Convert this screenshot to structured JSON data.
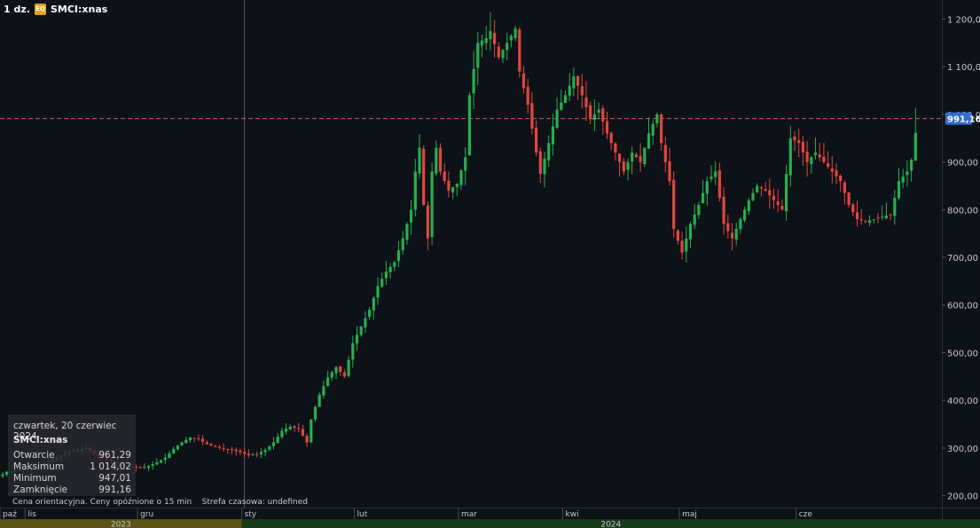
{
  "header": {
    "interval": "1 dz.",
    "badge": "EQ",
    "symbol": "SMCI:xnas"
  },
  "info_panel": {
    "date": "czwartek, 20 czerwiec 2024",
    "symbol": "SMCI:xnas",
    "rows": [
      {
        "label": "Otwarcie",
        "value": "961,29"
      },
      {
        "label": "Maksimum",
        "value": "1 014,02"
      },
      {
        "label": "Minimum",
        "value": "947,01"
      },
      {
        "label": "Zamknięcie",
        "value": "991,16"
      }
    ]
  },
  "footer_note": "Cena orientacyjna. Ceny opóźnione o 15 min    Strefa czasowa: undefined",
  "colors": {
    "up": "#22b14c",
    "down": "#e5453b",
    "background": "#0d1118",
    "price_line": "#e05050",
    "price_label_bg": "#2f6fd6",
    "year_2023": "#5a5216",
    "year_2024": "#173a1b"
  },
  "chart_data": {
    "type": "candlestick",
    "ylim": [
      175,
      1240
    ],
    "y_ticks": [
      200,
      300,
      400,
      500,
      600,
      700,
      800,
      900,
      1000,
      1100,
      1200
    ],
    "y_tick_labels": [
      "200,00",
      "300,00",
      "400,00",
      "500,00",
      "600,00",
      "700,00",
      "800,00",
      "900,00",
      "1 000,00",
      "1 100,00",
      "1 200,00"
    ],
    "current_price": 991.16,
    "current_price_label": "991,16",
    "months": [
      {
        "label": "paź",
        "index": 0
      },
      {
        "label": "lis",
        "index": 6
      },
      {
        "label": "gru",
        "index": 33
      },
      {
        "label": "sty",
        "index": 58
      },
      {
        "label": "lut",
        "index": 85
      },
      {
        "label": "mar",
        "index": 110
      },
      {
        "label": "kwi",
        "index": 135
      },
      {
        "label": "maj",
        "index": 163
      },
      {
        "label": "cze",
        "index": 191
      }
    ],
    "years": [
      {
        "label": "2023",
        "start": 0,
        "end": 58
      },
      {
        "label": "2024",
        "start": 58,
        "end": 210
      }
    ],
    "crosshair_index": 58,
    "anchors": [
      [
        0,
        245
      ],
      [
        1,
        250
      ],
      [
        3,
        252
      ],
      [
        5,
        255
      ],
      [
        8,
        262
      ],
      [
        10,
        268
      ],
      [
        12,
        275
      ],
      [
        14,
        285
      ],
      [
        16,
        290
      ],
      [
        18,
        295
      ],
      [
        20,
        300
      ],
      [
        22,
        288
      ],
      [
        25,
        276
      ],
      [
        27,
        268
      ],
      [
        29,
        262
      ],
      [
        31,
        260
      ],
      [
        33,
        258
      ],
      [
        35,
        262
      ],
      [
        37,
        270
      ],
      [
        39,
        280
      ],
      [
        41,
        298
      ],
      [
        43,
        312
      ],
      [
        45,
        322
      ],
      [
        47,
        318
      ],
      [
        49,
        308
      ],
      [
        51,
        302
      ],
      [
        53,
        298
      ],
      [
        55,
        296
      ],
      [
        57,
        291
      ],
      [
        59,
        285
      ],
      [
        61,
        287
      ],
      [
        63,
        296
      ],
      [
        65,
        312
      ],
      [
        67,
        336
      ],
      [
        69,
        345
      ],
      [
        71,
        340
      ],
      [
        73,
        312
      ],
      [
        74,
        360
      ],
      [
        76,
        412
      ],
      [
        78,
        448
      ],
      [
        80,
        470
      ],
      [
        82,
        450
      ],
      [
        84,
        520
      ],
      [
        86,
        555
      ],
      [
        88,
        590
      ],
      [
        90,
        640
      ],
      [
        92,
        670
      ],
      [
        94,
        690
      ],
      [
        96,
        740
      ],
      [
        98,
        800
      ],
      [
        99,
        880
      ],
      [
        100,
        930
      ],
      [
        101,
        810
      ],
      [
        102,
        740
      ],
      [
        103,
        880
      ],
      [
        104,
        930
      ],
      [
        105,
        880
      ],
      [
        107,
        840
      ],
      [
        109,
        855
      ],
      [
        111,
        910
      ],
      [
        112,
        1040
      ],
      [
        114,
        1150
      ],
      [
        116,
        1160
      ],
      [
        117,
        1175
      ],
      [
        119,
        1120
      ],
      [
        121,
        1150
      ],
      [
        123,
        1180
      ],
      [
        124,
        1090
      ],
      [
        126,
        1020
      ],
      [
        128,
        920
      ],
      [
        129,
        875
      ],
      [
        131,
        940
      ],
      [
        133,
        1010
      ],
      [
        135,
        1040
      ],
      [
        137,
        1080
      ],
      [
        139,
        1040
      ],
      [
        141,
        990
      ],
      [
        143,
        1010
      ],
      [
        145,
        960
      ],
      [
        147,
        920
      ],
      [
        149,
        880
      ],
      [
        151,
        920
      ],
      [
        153,
        900
      ],
      [
        155,
        960
      ],
      [
        157,
        1000
      ],
      [
        158,
        940
      ],
      [
        160,
        860
      ],
      [
        161,
        760
      ],
      [
        163,
        710
      ],
      [
        165,
        770
      ],
      [
        167,
        810
      ],
      [
        169,
        860
      ],
      [
        171,
        880
      ],
      [
        173,
        770
      ],
      [
        175,
        740
      ],
      [
        177,
        780
      ],
      [
        179,
        820
      ],
      [
        181,
        850
      ],
      [
        183,
        840
      ],
      [
        185,
        820
      ],
      [
        187,
        800
      ],
      [
        189,
        950
      ],
      [
        191,
        940
      ],
      [
        193,
        900
      ],
      [
        195,
        920
      ],
      [
        197,
        900
      ],
      [
        199,
        880
      ],
      [
        201,
        860
      ],
      [
        203,
        810
      ],
      [
        205,
        780
      ],
      [
        207,
        775
      ],
      [
        209,
        780
      ],
      [
        211,
        785
      ],
      [
        213,
        790
      ],
      [
        215,
        860
      ],
      [
        217,
        880
      ],
      [
        218,
        905
      ],
      [
        219,
        961.29
      ]
    ]
  }
}
